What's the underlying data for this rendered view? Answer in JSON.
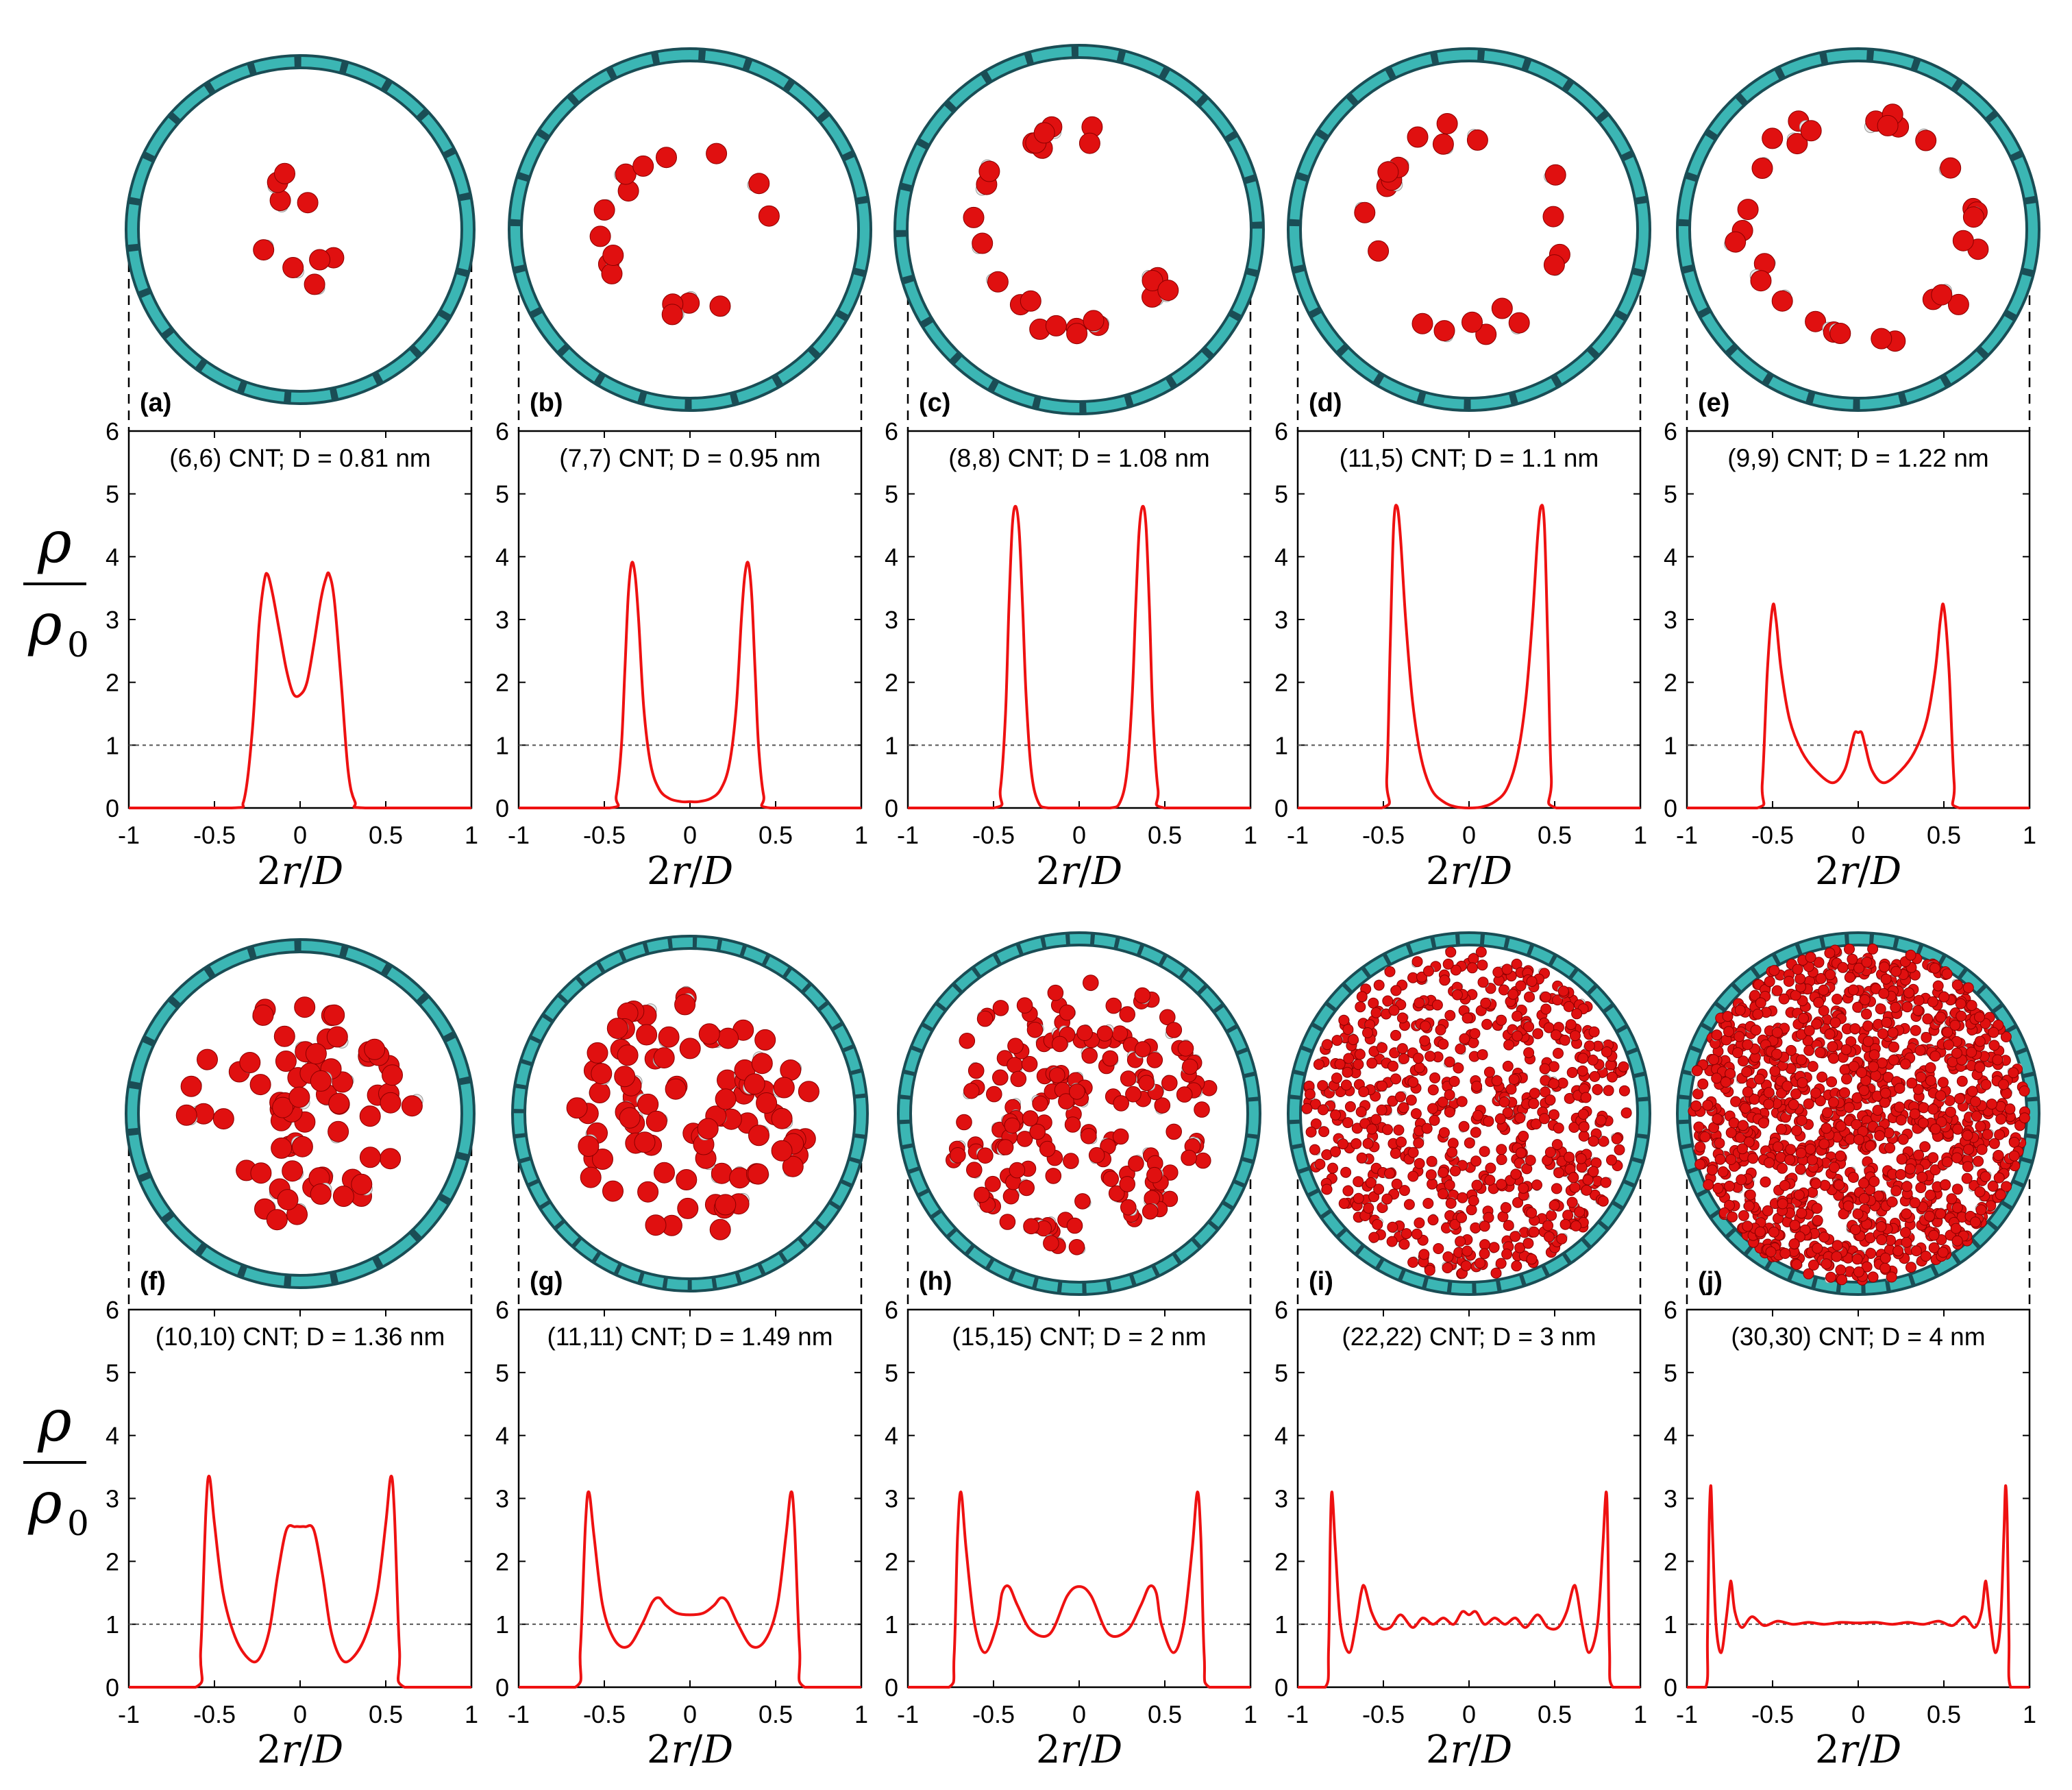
{
  "figure": {
    "ylabel_top": "ρ",
    "ylabel_bottom": "ρ",
    "ylabel_sub": "0",
    "xlabel_num": "2",
    "xlabel_var": "r",
    "xlabel_sep": "/",
    "xlabel_den": "D",
    "colors": {
      "curve": "#ee1111",
      "tube": "#3bb6b4",
      "tube_dark": "#1a4d55",
      "oxygen": "#e01010",
      "hydrogen": "#e8e8e8"
    }
  },
  "chart_data": [
    {
      "id": "a",
      "type": "line",
      "letter": "(a)",
      "title": "(6,6) CNT; D = 0.81 nm",
      "xlabel": "2r/D",
      "ylabel": "ρ/ρ0",
      "xlim": [
        -1,
        1
      ],
      "ylim": [
        0,
        6
      ],
      "xticks": [
        "-1",
        "-0.5",
        "0",
        "0.5",
        "1"
      ],
      "yticks": [
        "0",
        "1",
        "2",
        "3",
        "4",
        "5",
        "6"
      ],
      "reference_line": 1,
      "x": [
        -1,
        -0.4,
        -0.33,
        -0.28,
        -0.24,
        -0.21,
        -0.19,
        -0.16,
        -0.12,
        -0.08,
        -0.04,
        0,
        0.04,
        0.08,
        0.12,
        0.15,
        0.17,
        0.2,
        0.24,
        0.28,
        0.32,
        0.38,
        1
      ],
      "y": [
        0,
        0,
        0.1,
        1.2,
        2.9,
        3.6,
        3.72,
        3.4,
        2.8,
        2.2,
        1.82,
        1.8,
        2.0,
        2.6,
        3.3,
        3.65,
        3.72,
        3.3,
        2.0,
        0.6,
        0.1,
        0,
        0
      ]
    },
    {
      "id": "b",
      "type": "line",
      "letter": "(b)",
      "title": "(7,7) CNT; D = 0.95 nm",
      "xlabel": "2r/D",
      "ylabel": "ρ/ρ0",
      "xlim": [
        -1,
        1
      ],
      "ylim": [
        0,
        6
      ],
      "xticks": [
        "-1",
        "-0.5",
        "0",
        "0.5",
        "1"
      ],
      "yticks": [
        "0",
        "1",
        "2",
        "3",
        "4",
        "5",
        "6"
      ],
      "reference_line": 1,
      "x": [
        -1,
        -0.47,
        -0.43,
        -0.4,
        -0.38,
        -0.36,
        -0.34,
        -0.32,
        -0.3,
        -0.27,
        -0.23,
        -0.18,
        -0.12,
        -0.05,
        0,
        0.05,
        0.12,
        0.18,
        0.23,
        0.27,
        0.3,
        0.32,
        0.34,
        0.36,
        0.38,
        0.4,
        0.43,
        0.47,
        1
      ],
      "y": [
        0,
        0,
        0.2,
        1.0,
        2.2,
        3.4,
        3.9,
        3.7,
        3.0,
        1.6,
        0.7,
        0.3,
        0.15,
        0.1,
        0.1,
        0.1,
        0.15,
        0.3,
        0.7,
        1.6,
        3.0,
        3.7,
        3.9,
        3.4,
        2.2,
        1.0,
        0.2,
        0,
        0
      ]
    },
    {
      "id": "c",
      "type": "line",
      "letter": "(c)",
      "title": "(8,8) CNT; D = 1.08 nm",
      "xlabel": "2r/D",
      "ylabel": "ρ/ρ0",
      "xlim": [
        -1,
        1
      ],
      "ylim": [
        0,
        6
      ],
      "xticks": [
        "-1",
        "-0.5",
        "0",
        "0.5",
        "1"
      ],
      "yticks": [
        "0",
        "1",
        "2",
        "3",
        "4",
        "5",
        "6"
      ],
      "reference_line": 1,
      "x": [
        -1,
        -0.5,
        -0.46,
        -0.43,
        -0.41,
        -0.39,
        -0.37,
        -0.35,
        -0.33,
        -0.31,
        -0.28,
        -0.24,
        -0.18,
        0,
        0.18,
        0.24,
        0.28,
        0.31,
        0.33,
        0.35,
        0.37,
        0.39,
        0.41,
        0.43,
        0.46,
        0.5,
        1
      ],
      "y": [
        0,
        0,
        0.3,
        1.5,
        3.2,
        4.5,
        4.8,
        4.4,
        3.2,
        1.8,
        0.6,
        0.1,
        0,
        0,
        0,
        0.1,
        0.6,
        1.8,
        3.2,
        4.4,
        4.8,
        4.5,
        3.2,
        1.5,
        0.3,
        0,
        0
      ]
    },
    {
      "id": "d",
      "type": "line",
      "letter": "(d)",
      "title": "(11,5) CNT; D = 1.1 nm",
      "xlabel": "2r/D",
      "ylabel": "ρ/ρ0",
      "xlim": [
        -1,
        1
      ],
      "ylim": [
        0,
        6
      ],
      "xticks": [
        "-1",
        "-0.5",
        "0",
        "0.5",
        "1"
      ],
      "yticks": [
        "0",
        "1",
        "2",
        "3",
        "4",
        "5",
        "6"
      ],
      "reference_line": 1,
      "x": [
        -1,
        -0.51,
        -0.48,
        -0.46,
        -0.44,
        -0.42,
        -0.4,
        -0.37,
        -0.33,
        -0.28,
        -0.22,
        -0.15,
        -0.08,
        0,
        0.08,
        0.15,
        0.22,
        0.28,
        0.33,
        0.37,
        0.4,
        0.42,
        0.44,
        0.46,
        0.48,
        0.51,
        1
      ],
      "y": [
        0,
        0,
        0.5,
        2.6,
        4.5,
        4.8,
        4.3,
        3.0,
        1.7,
        0.8,
        0.3,
        0.1,
        0.02,
        0,
        0.02,
        0.1,
        0.3,
        0.8,
        1.7,
        3.0,
        4.3,
        4.8,
        4.5,
        2.6,
        0.5,
        0,
        0
      ]
    },
    {
      "id": "e",
      "type": "line",
      "letter": "(e)",
      "title": "(9,9) CNT; D = 1.22 nm",
      "xlabel": "2r/D",
      "ylabel": "ρ/ρ0",
      "xlim": [
        -1,
        1
      ],
      "ylim": [
        0,
        6
      ],
      "xticks": [
        "-1",
        "-0.5",
        "0",
        "0.5",
        "1"
      ],
      "yticks": [
        "0",
        "1",
        "2",
        "3",
        "4",
        "5",
        "6"
      ],
      "reference_line": 1,
      "x": [
        -1,
        -0.59,
        -0.56,
        -0.53,
        -0.5,
        -0.48,
        -0.45,
        -0.4,
        -0.33,
        -0.25,
        -0.15,
        -0.08,
        -0.04,
        -0.02,
        0,
        0.02,
        0.04,
        0.08,
        0.15,
        0.25,
        0.33,
        0.4,
        0.45,
        0.48,
        0.5,
        0.53,
        0.56,
        0.59,
        1
      ],
      "y": [
        0,
        0,
        0.4,
        2.2,
        3.2,
        3.0,
        2.2,
        1.4,
        0.9,
        0.6,
        0.4,
        0.6,
        1.0,
        1.2,
        1.2,
        1.2,
        1.0,
        0.6,
        0.4,
        0.6,
        0.9,
        1.4,
        2.2,
        3.0,
        3.2,
        2.2,
        0.4,
        0,
        0
      ]
    },
    {
      "id": "f",
      "type": "line",
      "letter": "(f)",
      "title": "(10,10) CNT; D = 1.36 nm",
      "xlabel": "2r/D",
      "ylabel": "ρ/ρ0",
      "xlim": [
        -1,
        1
      ],
      "ylim": [
        0,
        6
      ],
      "xticks": [
        "-1",
        "-0.5",
        "0",
        "0.5",
        "1"
      ],
      "yticks": [
        "0",
        "1",
        "2",
        "3",
        "4",
        "5",
        "6"
      ],
      "reference_line": 1,
      "x": [
        -1,
        -0.61,
        -0.58,
        -0.55,
        -0.53,
        -0.5,
        -0.45,
        -0.38,
        -0.3,
        -0.24,
        -0.18,
        -0.13,
        -0.08,
        -0.03,
        0,
        0.03,
        0.08,
        0.13,
        0.18,
        0.24,
        0.3,
        0.38,
        0.45,
        0.5,
        0.53,
        0.55,
        0.58,
        0.61,
        1
      ],
      "y": [
        0,
        0,
        0.6,
        2.8,
        3.35,
        2.6,
        1.5,
        0.8,
        0.45,
        0.45,
        0.9,
        1.8,
        2.5,
        2.55,
        2.55,
        2.55,
        2.5,
        1.8,
        0.9,
        0.45,
        0.45,
        0.8,
        1.5,
        2.6,
        3.35,
        2.8,
        0.6,
        0,
        0
      ]
    },
    {
      "id": "g",
      "type": "line",
      "letter": "(g)",
      "title": "(11,11) CNT; D = 1.49 nm",
      "xlabel": "2r/D",
      "ylabel": "ρ/ρ0",
      "xlim": [
        -1,
        1
      ],
      "ylim": [
        0,
        6
      ],
      "xticks": [
        "-1",
        "-0.5",
        "0",
        "0.5",
        "1"
      ],
      "yticks": [
        "0",
        "1",
        "2",
        "3",
        "4",
        "5",
        "6"
      ],
      "reference_line": 1,
      "x": [
        -1,
        -0.67,
        -0.64,
        -0.61,
        -0.59,
        -0.56,
        -0.51,
        -0.44,
        -0.36,
        -0.28,
        -0.22,
        -0.18,
        -0.14,
        -0.08,
        0,
        0.08,
        0.14,
        0.18,
        0.22,
        0.28,
        0.36,
        0.44,
        0.51,
        0.56,
        0.59,
        0.61,
        0.64,
        0.67,
        1
      ],
      "y": [
        0,
        0,
        0.6,
        2.6,
        3.1,
        2.4,
        1.3,
        0.75,
        0.65,
        1.0,
        1.35,
        1.42,
        1.3,
        1.18,
        1.15,
        1.18,
        1.3,
        1.42,
        1.35,
        1.0,
        0.65,
        0.75,
        1.3,
        2.4,
        3.1,
        2.6,
        0.6,
        0,
        0
      ]
    },
    {
      "id": "h",
      "type": "line",
      "letter": "(h)",
      "title": "(15,15) CNT; D = 2 nm",
      "xlabel": "2r/D",
      "ylabel": "ρ/ρ0",
      "xlim": [
        -1,
        1
      ],
      "ylim": [
        0,
        6
      ],
      "xticks": [
        "-1",
        "-0.5",
        "0",
        "0.5",
        "1"
      ],
      "yticks": [
        "0",
        "1",
        "2",
        "3",
        "4",
        "5",
        "6"
      ],
      "reference_line": 1,
      "x": [
        -1,
        -0.76,
        -0.73,
        -0.71,
        -0.69,
        -0.66,
        -0.61,
        -0.55,
        -0.48,
        -0.45,
        -0.41,
        -0.36,
        -0.28,
        -0.17,
        -0.07,
        0,
        0.07,
        0.17,
        0.28,
        0.36,
        0.41,
        0.45,
        0.48,
        0.55,
        0.61,
        0.66,
        0.69,
        0.71,
        0.73,
        0.76,
        1
      ],
      "y": [
        0,
        0,
        0.5,
        2.4,
        3.1,
        2.2,
        1.0,
        0.55,
        1.0,
        1.5,
        1.6,
        1.3,
        0.9,
        0.85,
        1.45,
        1.6,
        1.45,
        0.85,
        0.9,
        1.3,
        1.6,
        1.5,
        1.0,
        0.55,
        1.0,
        2.2,
        3.1,
        2.4,
        0.5,
        0,
        0
      ]
    },
    {
      "id": "i",
      "type": "line",
      "letter": "(i)",
      "title": "(22,22) CNT; D = 3 nm",
      "xlabel": "2r/D",
      "ylabel": "ρ/ρ0",
      "xlim": [
        -1,
        1
      ],
      "ylim": [
        0,
        6
      ],
      "xticks": [
        "-1",
        "-0.5",
        "0",
        "0.5",
        "1"
      ],
      "yticks": [
        "0",
        "1",
        "2",
        "3",
        "4",
        "5",
        "6"
      ],
      "reference_line": 1,
      "x": [
        -1,
        -0.84,
        -0.82,
        -0.81,
        -0.8,
        -0.78,
        -0.75,
        -0.7,
        -0.66,
        -0.63,
        -0.61,
        -0.57,
        -0.52,
        -0.46,
        -0.4,
        -0.33,
        -0.27,
        -0.21,
        -0.15,
        -0.09,
        -0.04,
        0,
        0.04,
        0.09,
        0.15,
        0.21,
        0.27,
        0.33,
        0.4,
        0.46,
        0.52,
        0.57,
        0.61,
        0.63,
        0.66,
        0.7,
        0.75,
        0.78,
        0.8,
        0.81,
        0.82,
        0.84,
        1
      ],
      "y": [
        0,
        0,
        0.6,
        2.4,
        3.1,
        2.2,
        1.0,
        0.55,
        1.0,
        1.5,
        1.6,
        1.2,
        0.95,
        0.95,
        1.15,
        0.95,
        1.1,
        1.0,
        1.1,
        1.0,
        1.2,
        1.15,
        1.2,
        1.0,
        1.1,
        1.0,
        1.1,
        0.95,
        1.15,
        0.95,
        0.95,
        1.2,
        1.6,
        1.5,
        1.0,
        0.55,
        1.0,
        2.2,
        3.1,
        2.4,
        0.6,
        0,
        0
      ]
    },
    {
      "id": "j",
      "type": "line",
      "letter": "(j)",
      "title": "(30,30) CNT; D = 4 nm",
      "xlabel": "2r/D",
      "ylabel": "ρ/ρ0",
      "xlim": [
        -1,
        1
      ],
      "ylim": [
        0,
        6
      ],
      "xticks": [
        "-1",
        "-0.5",
        "0",
        "0.5",
        "1"
      ],
      "yticks": [
        "0",
        "1",
        "2",
        "3",
        "4",
        "5",
        "6"
      ],
      "reference_line": 1,
      "x": [
        -1,
        -0.89,
        -0.88,
        -0.87,
        -0.86,
        -0.85,
        -0.83,
        -0.8,
        -0.77,
        -0.75,
        -0.74,
        -0.72,
        -0.68,
        -0.62,
        -0.55,
        -0.47,
        -0.38,
        -0.29,
        -0.2,
        -0.1,
        0,
        0.1,
        0.2,
        0.29,
        0.38,
        0.47,
        0.55,
        0.62,
        0.68,
        0.72,
        0.74,
        0.75,
        0.77,
        0.8,
        0.83,
        0.85,
        0.86,
        0.87,
        0.88,
        0.89,
        1
      ],
      "y": [
        0,
        0,
        0.8,
        2.6,
        3.2,
        2.4,
        1.0,
        0.55,
        1.1,
        1.6,
        1.65,
        1.2,
        0.95,
        1.12,
        0.98,
        1.05,
        1.0,
        1.03,
        1.0,
        1.03,
        1.02,
        1.03,
        1.0,
        1.03,
        1.0,
        1.05,
        0.98,
        1.12,
        0.95,
        1.2,
        1.65,
        1.6,
        1.1,
        0.55,
        1.0,
        2.4,
        3.2,
        2.6,
        0.8,
        0,
        0
      ]
    }
  ]
}
